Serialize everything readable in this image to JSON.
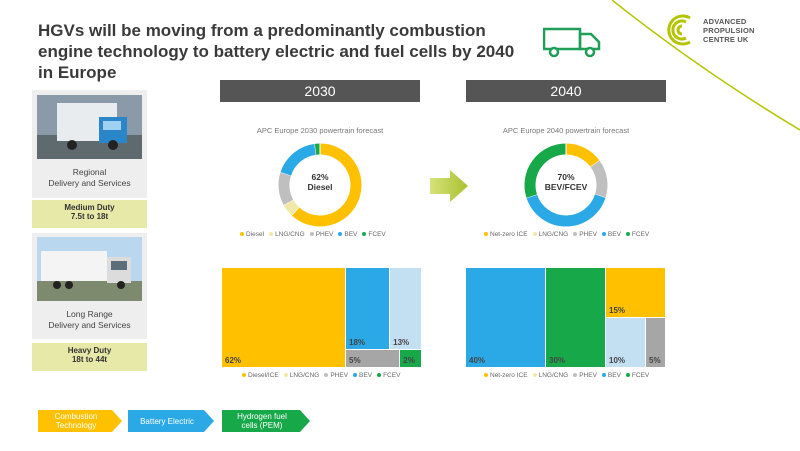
{
  "title": "HGVs will be moving from a predominantly combustion engine technology to battery electric and fuel cells by 2040 in Europe",
  "logo": {
    "line1": "ADVANCED",
    "line2": "PROPULSION",
    "line3": "CENTRE UK"
  },
  "colors": {
    "diesel": "#ffc000",
    "lng": "#f2e8a8",
    "phev": "#bfbfbf",
    "bev": "#2ba9e6",
    "fcev": "#17a84a",
    "bev_light": "#c3dff2",
    "phev_grey": "#a6a6a6",
    "accent_green": "#1f9e57",
    "lime": "#b5c400"
  },
  "segments": [
    {
      "label_line1": "Regional",
      "label_line2": "Delivery and Services",
      "duty": "Medium Duty",
      "range": "7.5t to 18t"
    },
    {
      "label_line1": "Long Range",
      "label_line2": "Delivery and Services",
      "duty": "Heavy Duty",
      "range": "18t to 44t"
    }
  ],
  "panels": [
    {
      "year": "2030",
      "donut_title": "APC Europe 2030 powertrain forecast",
      "center_line1": "62%",
      "center_line2": "Diesel",
      "donut_legend": [
        "Diesel",
        "LNG/CNG",
        "PHEV",
        "BEV",
        "FCEV"
      ],
      "treemap_legend": [
        "Diesel/ICE",
        "LNG/CNG",
        "PHEV",
        "BEV",
        "FCEV"
      ]
    },
    {
      "year": "2040",
      "donut_title": "APC Europe 2040 powertrain forecast",
      "center_line1": "70%",
      "center_line2": "BEV/FCEV",
      "donut_legend": [
        "Net-zero ICE",
        "LNG/CNG",
        "PHEV",
        "BEV",
        "FCEV"
      ],
      "treemap_legend": [
        "Net-zero ICE",
        "LNG/CNG",
        "PHEV",
        "BEV",
        "FCEV"
      ]
    }
  ],
  "chart_data": [
    {
      "type": "pie",
      "title": "APC Europe 2030 powertrain forecast",
      "labels": [
        "Diesel",
        "LNG/CNG",
        "PHEV",
        "BEV",
        "FCEV"
      ],
      "values": [
        62,
        5,
        13,
        18,
        2
      ]
    },
    {
      "type": "pie",
      "title": "APC Europe 2040 powertrain forecast",
      "labels": [
        "Net-zero ICE",
        "LNG/CNG",
        "PHEV",
        "BEV",
        "FCEV"
      ],
      "values": [
        15,
        0,
        15,
        40,
        30
      ]
    },
    {
      "type": "heatmap",
      "description_labels": [
        "Diesel/ICE",
        "BEV",
        "PHEV",
        "LNG/CNG",
        "FCEV"
      ],
      "values": [
        62,
        18,
        13,
        5,
        2
      ],
      "value_labels": [
        "62%",
        "18%",
        "13%",
        "5%",
        "2%"
      ]
    },
    {
      "type": "heatmap",
      "description_labels": [
        "BEV",
        "FCEV",
        "Net-zero ICE",
        "PHEV",
        "LNG/CNG"
      ],
      "values": [
        40,
        30,
        15,
        10,
        5
      ],
      "value_labels": [
        "40%",
        "30%",
        "15%",
        "10%",
        "5%"
      ]
    }
  ],
  "footer_legend": [
    {
      "label_line1": "Combustion",
      "label_line2": "Technology"
    },
    {
      "label_line1": "Battery Electric",
      "label_line2": ""
    },
    {
      "label_line1": "Hydrogen fuel",
      "label_line2": "cells (PEM)"
    }
  ]
}
